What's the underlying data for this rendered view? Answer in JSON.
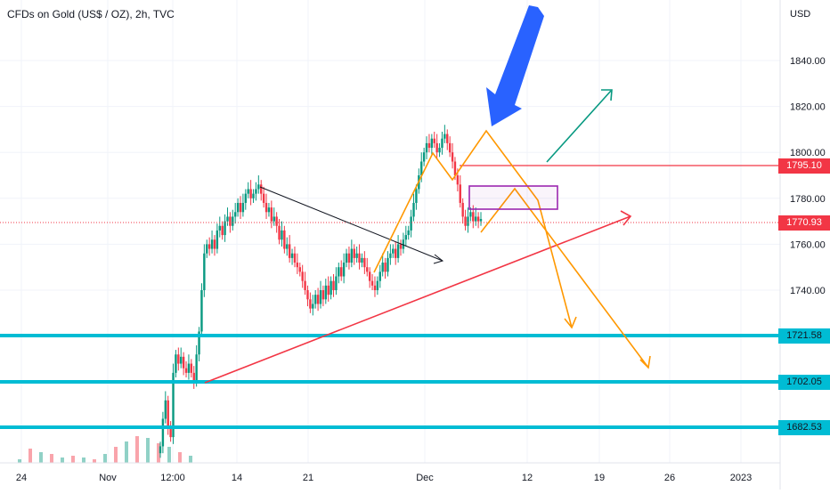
{
  "chart_data": {
    "type": "candlestick",
    "title": "CFDs on Gold (US$ / OZ), 2h, TVC",
    "currency_label": "USD",
    "y_axis": {
      "ticks": [
        1840,
        1820,
        1800,
        1780,
        1760,
        1740
      ],
      "tick_labels": [
        "1840.00",
        "1820.00",
        "1800.00",
        "1780.00",
        "1760.00",
        "1740.00"
      ],
      "range": [
        1670,
        1870
      ]
    },
    "x_axis": {
      "tick_labels": [
        "24",
        "Nov",
        "12:00",
        "14",
        "21",
        "Dec",
        "12",
        "19",
        "26",
        "2023"
      ]
    },
    "price_labels": {
      "resistance_red": "1795.10",
      "current_price": "1770.93",
      "support_1": "1721.58",
      "support_2": "1702.05",
      "support_3": "1682.53"
    },
    "candles_close": [
      1672,
      1684,
      1692,
      1680,
      1676,
      1704,
      1712,
      1708,
      1711,
      1706,
      1704,
      1708,
      1704,
      1700,
      1712,
      1722,
      1740,
      1756,
      1760,
      1758,
      1762,
      1758,
      1766,
      1768,
      1764,
      1770,
      1772,
      1768,
      1772,
      1774,
      1778,
      1774,
      1778,
      1782,
      1784,
      1780,
      1782,
      1784,
      1786,
      1782,
      1778,
      1774,
      1776,
      1770,
      1772,
      1768,
      1762,
      1766,
      1758,
      1760,
      1754,
      1756,
      1752,
      1750,
      1748,
      1744,
      1740,
      1736,
      1732,
      1734,
      1738,
      1734,
      1740,
      1736,
      1742,
      1738,
      1744,
      1740,
      1746,
      1750,
      1746,
      1752,
      1756,
      1752,
      1758,
      1754,
      1756,
      1752,
      1754,
      1750,
      1748,
      1744,
      1742,
      1740,
      1744,
      1748,
      1752,
      1748,
      1754,
      1756,
      1758,
      1754,
      1760,
      1758,
      1762,
      1764,
      1766,
      1772,
      1778,
      1784,
      1790,
      1796,
      1800,
      1804,
      1802,
      1806,
      1804,
      1800,
      1802,
      1806,
      1808,
      1804,
      1800,
      1796,
      1790,
      1786,
      1778,
      1772,
      1768,
      1772,
      1774,
      1770,
      1772,
      1770,
      1771
    ],
    "volume_bars": [
      2,
      8,
      6,
      5,
      3,
      4,
      3,
      2,
      5,
      9,
      12,
      15,
      14,
      11,
      9,
      6,
      4
    ],
    "colors": {
      "up": "#089981",
      "down": "#f23645",
      "support_lines": "#00bcd4",
      "resistance_line": "#f23645",
      "trendline_up": "#f23645",
      "trendline_down": "#131722",
      "zigzag": "#ff9800",
      "target_box": "#9c27b0",
      "green_arrow": "#089981",
      "blue_arrow": "#2962ff"
    }
  }
}
